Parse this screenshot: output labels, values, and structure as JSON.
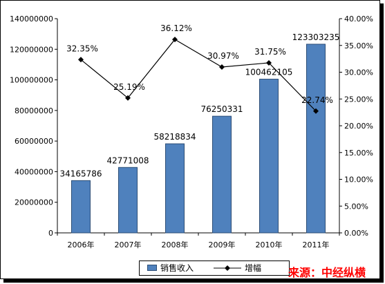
{
  "chart_data": {
    "type": "bar",
    "categories": [
      "2006年",
      "2007年",
      "2008年",
      "2009年",
      "2010年",
      "2011年"
    ],
    "series": [
      {
        "name": "销售收入",
        "type": "bar",
        "axis": "left",
        "values": [
          34165786,
          42771008,
          58218834,
          76250331,
          100462105,
          123303235
        ],
        "labels": [
          "34165786",
          "42771008",
          "58218834",
          "76250331",
          "100462105",
          "123303235"
        ]
      },
      {
        "name": "增幅",
        "type": "line",
        "axis": "right",
        "values": [
          32.35,
          25.19,
          36.12,
          30.97,
          31.75,
          22.74
        ],
        "labels": [
          "32.35%",
          "25.19%",
          "36.12%",
          "30.97%",
          "31.75%",
          "22.74%"
        ]
      }
    ],
    "y_left": {
      "ylim": [
        0,
        140000000
      ],
      "ticks": [
        "0",
        "20000000",
        "40000000",
        "60000000",
        "80000000",
        "100000000",
        "120000000",
        "140000000"
      ]
    },
    "y_right": {
      "ylim": [
        0,
        40
      ],
      "ticks": [
        "0.00%",
        "5.00%",
        "10.00%",
        "15.00%",
        "20.00%",
        "25.00%",
        "30.00%",
        "35.00%",
        "40.00%"
      ]
    },
    "legend": {
      "placement": "bottom",
      "entries": [
        "销售收入",
        "增幅"
      ]
    },
    "grid": false
  },
  "colors": {
    "bar": "#4F81BD",
    "bar_edge": "#2C4D75",
    "line": "#000000",
    "source": "#FF0000"
  },
  "source_note": "来源：中经纵横"
}
